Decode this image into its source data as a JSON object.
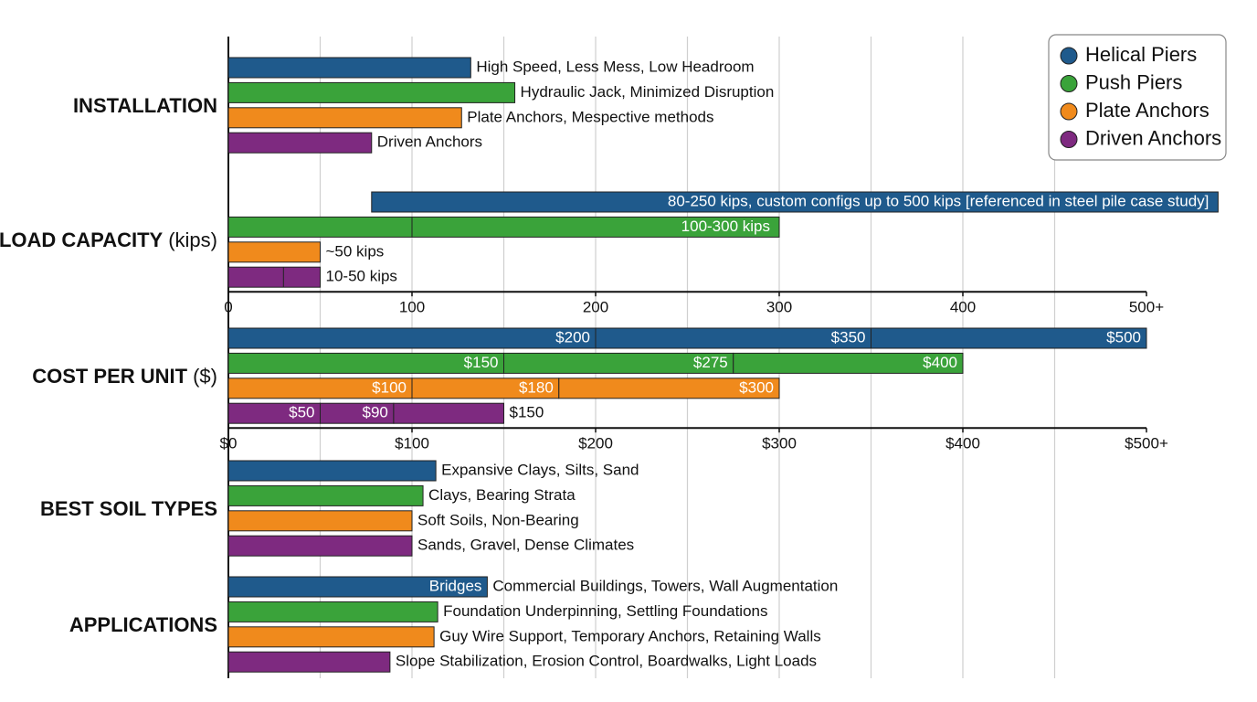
{
  "chart_data": {
    "type": "bar",
    "grid": true,
    "legend_position": "upper right",
    "series": [
      {
        "name": "Helical Piers",
        "color": "#1f5a8c"
      },
      {
        "name": "Push Piers",
        "color": "#3aa33a"
      },
      {
        "name": "Plate Anchors",
        "color": "#f08a1c"
      },
      {
        "name": "Driven Anchors",
        "color": "#7e2a80"
      }
    ],
    "grid_x": [
      50,
      100,
      150,
      200,
      250,
      300,
      350,
      400,
      450
    ],
    "sections": [
      {
        "title": "INSTALLATION",
        "rows": [
          {
            "value": 132,
            "label": "High Speed, Less Mess, Low Headroom"
          },
          {
            "value": 156,
            "label": "Hydraulic Jack, Minimized Disruption"
          },
          {
            "value": 127,
            "label": "Plate Anchors, Mespective methods"
          },
          {
            "value": 78,
            "label": "Driven Anchors"
          }
        ]
      },
      {
        "title": "LOAD CAPACITY",
        "unit": "(kips)",
        "axis": {
          "xlim": [
            0,
            500
          ],
          "xticks": [
            0,
            100,
            200,
            300,
            400,
            {
              "value": 500,
              "label": "500+"
            }
          ]
        },
        "rows": [
          {
            "range": [
              78,
              539
            ],
            "label": "80-250 kips, custom configs up to 500 kips [referenced in steel pile case study]",
            "label_inside": true
          },
          {
            "range": [
              0,
              300
            ],
            "dividers": [
              100
            ],
            "label": "100-300 kips",
            "label_inside": true
          },
          {
            "range": [
              0,
              50
            ],
            "label": "~50 kips"
          },
          {
            "range": [
              0,
              50
            ],
            "dividers": [
              30
            ],
            "label": "10-50 kips"
          }
        ]
      },
      {
        "title": "COST PER UNIT",
        "unit": "($)",
        "axis": {
          "xlim": [
            0,
            500
          ],
          "xticks": [
            {
              "value": 0,
              "label": "$0"
            },
            {
              "value": 100,
              "label": "$100"
            },
            {
              "value": 200,
              "label": "$200"
            },
            {
              "value": 300,
              "label": "$300"
            },
            {
              "value": 400,
              "label": "$400"
            },
            {
              "value": 500,
              "label": "$500+"
            }
          ]
        },
        "rows": [
          {
            "values": [
              200,
              350,
              500
            ],
            "value_labels": [
              "$200",
              "$350",
              "$500"
            ]
          },
          {
            "values": [
              150,
              275,
              400
            ],
            "value_labels": [
              "$150",
              "$275",
              "$400"
            ]
          },
          {
            "values": [
              100,
              180,
              300
            ],
            "value_labels": [
              "$100",
              "$180",
              "$300"
            ]
          },
          {
            "values": [
              50,
              90,
              150
            ],
            "value_labels": [
              "$50",
              "$90",
              "$150"
            ],
            "last_label_outside": true
          }
        ]
      },
      {
        "title": "BEST SOIL TYPES",
        "rows": [
          {
            "value": 113,
            "label": "Expansive Clays, Silts, Sand"
          },
          {
            "value": 106,
            "label": "Clays, Bearing Strata"
          },
          {
            "value": 100,
            "label": "Soft Soils, Non-Bearing"
          },
          {
            "value": 100,
            "label": "Sands, Gravel, Dense Climates"
          }
        ]
      },
      {
        "title": "APPLICATIONS",
        "rows": [
          {
            "value": 141,
            "inner_label": "Bridges",
            "label": "Commercial Buildings, Towers, Wall Augmentation"
          },
          {
            "value": 114,
            "label": "Foundation Underpinning, Settling Foundations"
          },
          {
            "value": 112,
            "label": "Guy Wire Support, Temporary Anchors, Retaining Walls"
          },
          {
            "value": 88,
            "label": "Slope Stabilization, Erosion Control, Boardwalks, Light Loads"
          }
        ]
      }
    ]
  }
}
